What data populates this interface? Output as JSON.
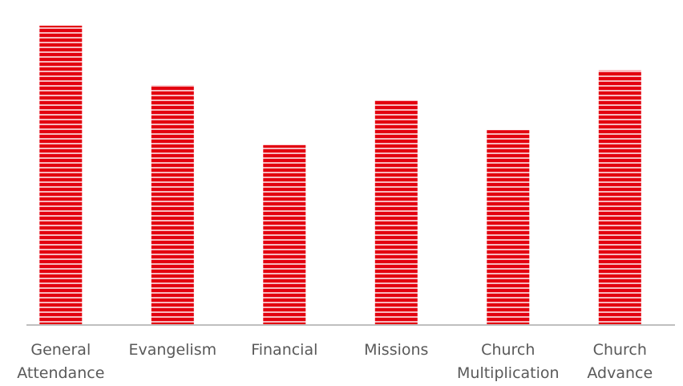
{
  "chart_data": {
    "type": "bar",
    "categories": [
      [
        "General",
        "Attendance"
      ],
      [
        "Evangelism"
      ],
      [
        "Financial"
      ],
      [
        "Missions"
      ],
      [
        "Church",
        "Multiplication"
      ],
      [
        "Church",
        "Advance"
      ]
    ],
    "values": [
      100,
      80,
      60,
      75,
      65,
      85
    ],
    "ylim": [
      0,
      100
    ],
    "title": "",
    "xlabel": "",
    "ylabel": "",
    "grid": false,
    "legend": "none",
    "colors": {
      "bar_stripe_dark": "#e3000f",
      "bar_stripe_light": "#f7b9bd",
      "axis": "#bfbfbf",
      "label_text": "#595959"
    }
  }
}
